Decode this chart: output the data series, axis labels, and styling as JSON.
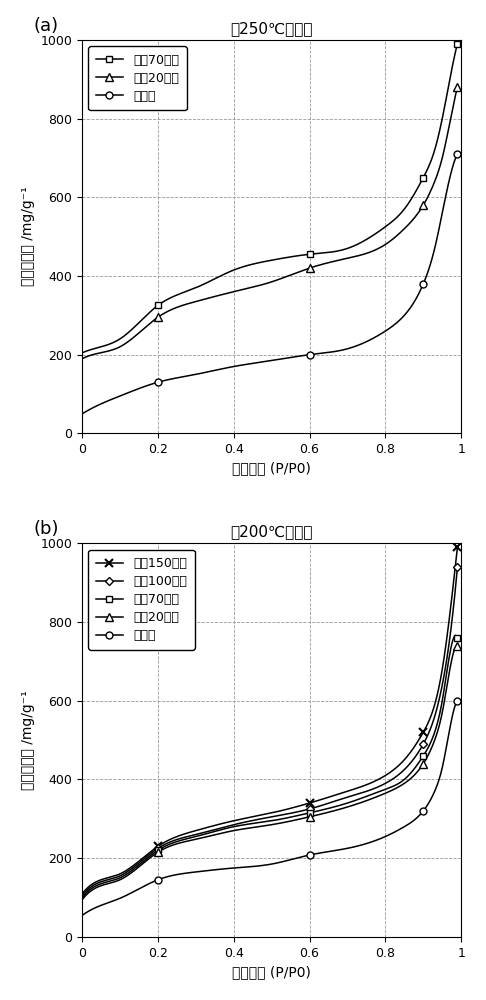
{
  "panel_a": {
    "title": "在250℃下处理",
    "xlabel": "相对压力 (P/P0)",
    "ylabel": "氮的吸附量 /mg/g⁻¹",
    "xlim": [
      0,
      1.0
    ],
    "ylim": [
      0,
      1000
    ],
    "xticks": [
      0,
      0.2,
      0.4,
      0.6,
      0.8,
      1.0
    ],
    "yticks": [
      0,
      200,
      400,
      600,
      800,
      1000
    ],
    "series": [
      {
        "label": "处理70小时",
        "marker": "s",
        "marker_indices": [
          3,
          7,
          11,
          15
        ],
        "x": [
          0.001,
          0.05,
          0.1,
          0.2,
          0.3,
          0.4,
          0.5,
          0.6,
          0.7,
          0.8,
          0.85,
          0.9,
          0.93,
          0.95,
          0.97,
          0.99
        ],
        "y": [
          205,
          220,
          240,
          325,
          370,
          415,
          440,
          455,
          470,
          525,
          570,
          650,
          720,
          800,
          900,
          990
        ]
      },
      {
        "label": "处理20小时",
        "marker": "^",
        "marker_indices": [
          3,
          7,
          11,
          15
        ],
        "x": [
          0.001,
          0.05,
          0.1,
          0.2,
          0.3,
          0.4,
          0.5,
          0.6,
          0.7,
          0.8,
          0.85,
          0.9,
          0.93,
          0.95,
          0.97,
          0.99
        ],
        "y": [
          190,
          205,
          220,
          295,
          335,
          360,
          385,
          420,
          445,
          480,
          520,
          580,
          640,
          700,
          790,
          880
        ]
      },
      {
        "label": "未处理",
        "marker": "o",
        "marker_indices": [
          3,
          7,
          11,
          15
        ],
        "x": [
          0.001,
          0.05,
          0.1,
          0.2,
          0.3,
          0.4,
          0.5,
          0.6,
          0.7,
          0.8,
          0.85,
          0.9,
          0.93,
          0.95,
          0.97,
          0.99
        ],
        "y": [
          50,
          75,
          95,
          130,
          150,
          170,
          185,
          200,
          215,
          260,
          300,
          380,
          470,
          560,
          650,
          710
        ]
      }
    ]
  },
  "panel_b": {
    "title": "在200℃下处理",
    "xlabel": "相对压力 (P/P0)",
    "ylabel": "氮的吸附量 /mg/g⁻¹",
    "xlim": [
      0,
      1.0
    ],
    "ylim": [
      0,
      1000
    ],
    "xticks": [
      0,
      0.2,
      0.4,
      0.6,
      0.8,
      1.0
    ],
    "yticks": [
      0,
      200,
      400,
      600,
      800,
      1000
    ],
    "series": [
      {
        "label": "处理150小时",
        "marker": "x",
        "marker_indices": [
          3,
          7,
          11,
          15
        ],
        "x": [
          0.001,
          0.05,
          0.1,
          0.2,
          0.3,
          0.4,
          0.5,
          0.6,
          0.7,
          0.8,
          0.85,
          0.9,
          0.93,
          0.95,
          0.97,
          0.99
        ],
        "y": [
          110,
          145,
          160,
          230,
          270,
          295,
          315,
          340,
          370,
          410,
          450,
          520,
          590,
          680,
          820,
          990
        ]
      },
      {
        "label": "处理100小时",
        "marker": "D",
        "marker_indices": [
          3,
          7,
          11,
          15
        ],
        "x": [
          0.001,
          0.05,
          0.1,
          0.2,
          0.3,
          0.4,
          0.5,
          0.6,
          0.7,
          0.8,
          0.85,
          0.9,
          0.93,
          0.95,
          0.97,
          0.99
        ],
        "y": [
          105,
          140,
          155,
          225,
          260,
          285,
          305,
          325,
          355,
          390,
          425,
          490,
          560,
          640,
          760,
          940
        ]
      },
      {
        "label": "处理70小时",
        "marker": "s",
        "marker_indices": [
          3,
          7,
          11,
          15
        ],
        "x": [
          0.001,
          0.05,
          0.1,
          0.2,
          0.3,
          0.4,
          0.5,
          0.6,
          0.7,
          0.8,
          0.85,
          0.9,
          0.93,
          0.95,
          0.97,
          0.99
        ],
        "y": [
          100,
          135,
          150,
          220,
          255,
          280,
          295,
          315,
          340,
          375,
          400,
          460,
          520,
          600,
          720,
          760
        ]
      },
      {
        "label": "处理20小时",
        "marker": "^",
        "marker_indices": [
          3,
          7,
          11,
          15
        ],
        "x": [
          0.001,
          0.05,
          0.1,
          0.2,
          0.3,
          0.4,
          0.5,
          0.6,
          0.7,
          0.8,
          0.85,
          0.9,
          0.93,
          0.95,
          0.97,
          0.99
        ],
        "y": [
          95,
          130,
          145,
          215,
          248,
          270,
          285,
          305,
          330,
          365,
          390,
          440,
          500,
          570,
          680,
          740
        ]
      },
      {
        "label": "未处理",
        "marker": "o",
        "marker_indices": [
          3,
          7,
          11,
          15
        ],
        "x": [
          0.001,
          0.05,
          0.1,
          0.2,
          0.3,
          0.4,
          0.5,
          0.6,
          0.7,
          0.8,
          0.85,
          0.9,
          0.93,
          0.95,
          0.97,
          0.99
        ],
        "y": [
          55,
          80,
          98,
          145,
          165,
          175,
          185,
          208,
          225,
          255,
          280,
          320,
          370,
          430,
          530,
          600
        ]
      }
    ]
  },
  "line_color": "#000000",
  "background_color": "#ffffff",
  "grid_color": "#999999",
  "label_fontsize": 10,
  "title_fontsize": 11,
  "tick_fontsize": 9,
  "legend_fontsize": 9,
  "panel_label_fontsize": 13,
  "marker_size_map": {
    "s": 5,
    "^": 6,
    "o": 5,
    "x": 6,
    "D": 4
  }
}
